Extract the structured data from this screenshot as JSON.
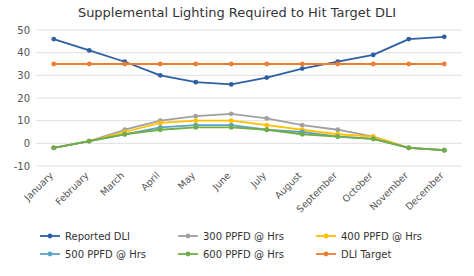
{
  "chart_data": {
    "type": "line",
    "title": "Supplemental Lighting Required to Hit Target DLI",
    "categories": [
      "January",
      "February",
      "March",
      "April",
      "May",
      "June",
      "July",
      "August",
      "September",
      "October",
      "November",
      "December"
    ],
    "series": [
      {
        "name": "Reported DLI",
        "color": "#2e5fa3",
        "marker": "circle",
        "values": [
          46,
          41,
          36,
          30,
          27,
          26,
          29,
          33,
          36,
          39,
          46,
          47
        ]
      },
      {
        "name": "300 PPFD @ Hrs",
        "color": "#a0a0a0",
        "marker": "circle",
        "values": [
          -2,
          1,
          6,
          10,
          12,
          13,
          11,
          8,
          6,
          3,
          -2,
          -3
        ]
      },
      {
        "name": "400 PPFD @ Hrs",
        "color": "#ffc000",
        "marker": "circle",
        "values": [
          -2,
          1,
          5,
          9,
          10,
          10,
          8,
          6,
          4,
          3,
          -2,
          -3
        ]
      },
      {
        "name": "500 PPFD @ Hrs",
        "color": "#5ba3c9",
        "marker": "circle",
        "values": [
          -2,
          1,
          4,
          7,
          8,
          8,
          6,
          5,
          3,
          2,
          -2,
          -3
        ]
      },
      {
        "name": "600 PPFD @ Hrs",
        "color": "#70ad47",
        "marker": "circle",
        "values": [
          -2,
          1,
          4,
          6,
          7,
          7,
          6,
          4,
          3,
          2,
          -2,
          -3
        ]
      },
      {
        "name": "DLI Target",
        "color": "#ed7d31",
        "marker": "circle",
        "values": [
          35,
          35,
          35,
          35,
          35,
          35,
          35,
          35,
          35,
          35,
          35,
          35
        ]
      }
    ],
    "ylim": [
      -10,
      50
    ],
    "yticks": [
      -10,
      0,
      10,
      20,
      30,
      40,
      50
    ],
    "grid": true,
    "legend": "bottom"
  }
}
